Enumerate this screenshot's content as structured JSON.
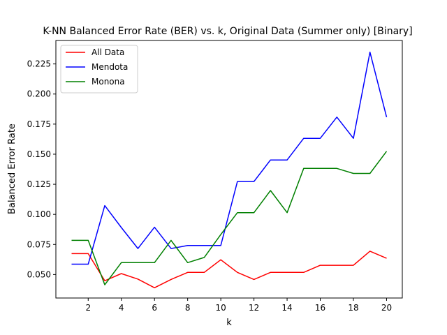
{
  "chart_data": {
    "type": "line",
    "title": "K-NN Balanced Error Rate (BER) vs. k, Original Data (Summer only) [Binary]",
    "xlabel": "k",
    "ylabel": "Balanced Error Rate",
    "x": [
      1,
      2,
      3,
      4,
      5,
      6,
      7,
      8,
      9,
      10,
      11,
      12,
      13,
      14,
      15,
      16,
      17,
      18,
      19,
      20
    ],
    "xlim": [
      0.05,
      20.95
    ],
    "ylim": [
      0.0305,
      0.2445
    ],
    "xticks": [
      2,
      4,
      6,
      8,
      10,
      12,
      14,
      16,
      18,
      20
    ],
    "yticks": [
      0.05,
      0.075,
      0.1,
      0.125,
      0.15,
      0.175,
      0.2,
      0.225
    ],
    "ytick_labels": [
      "0.050",
      "0.075",
      "0.100",
      "0.125",
      "0.150",
      "0.175",
      "0.200",
      "0.225"
    ],
    "grid": false,
    "legend_position": "upper-left",
    "series": [
      {
        "name": "All Data",
        "color": "#ff0000",
        "values": [
          0.0674,
          0.0674,
          0.0448,
          0.0508,
          0.0462,
          0.039,
          0.0459,
          0.0518,
          0.0518,
          0.0623,
          0.0518,
          0.0459,
          0.0518,
          0.0518,
          0.0518,
          0.0577,
          0.0577,
          0.0577,
          0.0694,
          0.0635
        ]
      },
      {
        "name": "Mendota",
        "color": "#0000ff",
        "values": [
          0.0586,
          0.0586,
          0.1073,
          0.0891,
          0.0716,
          0.0893,
          0.0716,
          0.0741,
          0.0741,
          0.0741,
          0.1273,
          0.1273,
          0.1452,
          0.1452,
          0.1632,
          0.1632,
          0.1808,
          0.1632,
          0.2348,
          0.1808
        ]
      },
      {
        "name": "Monona",
        "color": "#008000",
        "values": [
          0.0784,
          0.0784,
          0.0415,
          0.0599,
          0.0599,
          0.0599,
          0.0784,
          0.0599,
          0.0642,
          0.0832,
          0.1014,
          0.1014,
          0.1198,
          0.1014,
          0.1382,
          0.1382,
          0.1382,
          0.134,
          0.134,
          0.1524
        ]
      }
    ]
  }
}
